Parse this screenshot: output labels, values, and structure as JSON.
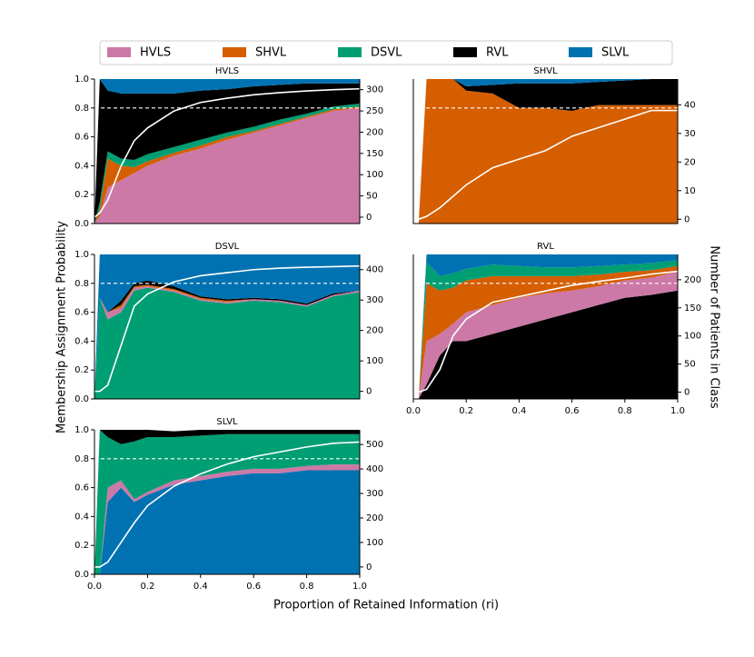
{
  "labels": {
    "ylabel": "Membership Assignment Probability",
    "y2label": "Number of Patients in Class",
    "xlabel": "Proportion of Retained Information (ri)"
  },
  "chart_data": [
    {
      "type": "area",
      "title": "HVLS",
      "x": [
        0,
        0.02,
        0.05,
        0.1,
        0.15,
        0.2,
        0.3,
        0.4,
        0.5,
        0.6,
        0.7,
        0.8,
        0.9,
        1.0
      ],
      "series": [
        {
          "name": "HVLS",
          "color": "#cc79a7",
          "values": [
            0,
            0.05,
            0.25,
            0.3,
            0.35,
            0.4,
            0.47,
            0.52,
            0.58,
            0.63,
            0.68,
            0.73,
            0.78,
            0.8
          ]
        },
        {
          "name": "SHVL",
          "color": "#d55e00",
          "values": [
            0,
            0.05,
            0.2,
            0.1,
            0.04,
            0.03,
            0.02,
            0.02,
            0.02,
            0.01,
            0.01,
            0.01,
            0.01,
            0.01
          ]
        },
        {
          "name": "DSVL",
          "color": "#009e73",
          "values": [
            0,
            0.05,
            0.05,
            0.05,
            0.05,
            0.05,
            0.04,
            0.04,
            0.03,
            0.03,
            0.03,
            0.02,
            0.02,
            0.02
          ]
        },
        {
          "name": "RVL",
          "color": "#000000",
          "values": [
            0,
            0.85,
            0.42,
            0.45,
            0.46,
            0.42,
            0.37,
            0.34,
            0.3,
            0.28,
            0.24,
            0.21,
            0.16,
            0.14
          ]
        },
        {
          "name": "SLVL",
          "color": "#0072b2",
          "values": [
            0,
            0,
            0.08,
            0.1,
            0.1,
            0.1,
            0.1,
            0.08,
            0.07,
            0.05,
            0.04,
            0.03,
            0.03,
            0.03
          ]
        }
      ],
      "line": {
        "color": "#ffffff",
        "axis": "y2",
        "values": [
          0,
          10,
          40,
          120,
          180,
          210,
          250,
          270,
          280,
          288,
          293,
          297,
          300,
          302
        ]
      },
      "threshold": 0.8,
      "xlim": [
        0,
        1
      ],
      "ylim": [
        0,
        1
      ],
      "yticks": [
        {
          "value": 0,
          "label": "0.0"
        },
        {
          "value": 0.2,
          "label": "0.2"
        },
        {
          "value": 0.4,
          "label": "0.4"
        },
        {
          "value": 0.6,
          "label": "0.6"
        },
        {
          "value": 0.8,
          "label": "0.8"
        },
        {
          "value": 1,
          "label": "1.0"
        }
      ],
      "y2lim": [
        -15,
        325
      ],
      "y2ticks": [
        0,
        50,
        100,
        150,
        200,
        250,
        300
      ]
    },
    {
      "type": "area",
      "title": "SHVL",
      "x": [
        0,
        0.02,
        0.05,
        0.1,
        0.15,
        0.2,
        0.3,
        0.4,
        0.5,
        0.6,
        0.7,
        0.8,
        0.9,
        1.0
      ],
      "series": [
        {
          "name": "SHVL",
          "color": "#d55e00",
          "values": [
            0,
            0,
            1,
            1,
            1,
            0.92,
            0.9,
            0.8,
            0.8,
            0.78,
            0.82,
            0.82,
            0.82,
            0.82
          ]
        },
        {
          "name": "HVLS",
          "color": "#cc79a7",
          "values": [
            0,
            0,
            0,
            0,
            0,
            0,
            0,
            0,
            0,
            0,
            0,
            0,
            0,
            0
          ]
        },
        {
          "name": "DSVL",
          "color": "#009e73",
          "values": [
            0,
            0,
            0,
            0,
            0,
            0,
            0,
            0,
            0,
            0,
            0,
            0,
            0,
            0
          ]
        },
        {
          "name": "RVL",
          "color": "#000000",
          "values": [
            0,
            0,
            0,
            0,
            0,
            0.03,
            0.06,
            0.17,
            0.17,
            0.19,
            0.16,
            0.17,
            0.18,
            0.18
          ]
        },
        {
          "name": "SLVL",
          "color": "#0072b2",
          "values": [
            0,
            0,
            0,
            0,
            0,
            0.05,
            0.04,
            0.03,
            0.03,
            0.03,
            0.02,
            0.01,
            0,
            0
          ]
        }
      ],
      "line": {
        "color": "#ffffff",
        "axis": "y2",
        "values": [
          0,
          0,
          1,
          4,
          8,
          12,
          18,
          21,
          24,
          29,
          32,
          35,
          38,
          38
        ]
      },
      "threshold": 0.8,
      "xlim": [
        0,
        1
      ],
      "ylim": [
        0,
        1
      ],
      "y2lim": [
        -1.5,
        49
      ],
      "y2ticks": [
        0,
        10,
        20,
        30,
        40
      ]
    },
    {
      "type": "area",
      "title": "DSVL",
      "x": [
        0,
        0.02,
        0.05,
        0.1,
        0.15,
        0.2,
        0.3,
        0.4,
        0.5,
        0.6,
        0.7,
        0.8,
        0.9,
        1.0
      ],
      "series": [
        {
          "name": "DSVL",
          "color": "#009e73",
          "values": [
            0,
            0.7,
            0.55,
            0.6,
            0.75,
            0.77,
            0.74,
            0.68,
            0.66,
            0.68,
            0.67,
            0.64,
            0.71,
            0.74
          ]
        },
        {
          "name": "HVLS",
          "color": "#cc79a7",
          "values": [
            0,
            0,
            0.05,
            0.03,
            0.02,
            0.01,
            0.01,
            0.01,
            0.01,
            0.01,
            0.01,
            0.01,
            0.01,
            0.01
          ]
        },
        {
          "name": "SHVL",
          "color": "#d55e00",
          "values": [
            0,
            0,
            0,
            0.02,
            0.01,
            0.01,
            0.01,
            0.01,
            0.01,
            0,
            0,
            0,
            0,
            0
          ]
        },
        {
          "name": "RVL",
          "color": "#000000",
          "values": [
            0,
            0,
            0,
            0.03,
            0.02,
            0.03,
            0.02,
            0.01,
            0.01,
            0.01,
            0.01,
            0.01,
            0.01,
            0
          ]
        },
        {
          "name": "SLVL",
          "color": "#0072b2",
          "values": [
            0,
            0.3,
            0.4,
            0.32,
            0.2,
            0.18,
            0.22,
            0.29,
            0.31,
            0.3,
            0.31,
            0.34,
            0.27,
            0.25
          ]
        }
      ],
      "line": {
        "color": "#ffffff",
        "axis": "y2",
        "values": [
          0,
          0,
          20,
          150,
          280,
          320,
          360,
          380,
          390,
          400,
          405,
          408,
          410,
          412
        ]
      },
      "threshold": 0.8,
      "xlim": [
        0,
        1
      ],
      "ylim": [
        0,
        1
      ],
      "yticks": [
        {
          "value": 0,
          "label": "0.0"
        },
        {
          "value": 0.2,
          "label": "0.2"
        },
        {
          "value": 0.4,
          "label": "0.4"
        },
        {
          "value": 0.6,
          "label": "0.6"
        },
        {
          "value": 0.8,
          "label": "0.8"
        },
        {
          "value": 1,
          "label": "1.0"
        }
      ],
      "y2lim": [
        -25,
        450
      ],
      "y2ticks": [
        0,
        100,
        200,
        300,
        400
      ]
    },
    {
      "type": "area",
      "title": "RVL",
      "x": [
        0,
        0.02,
        0.05,
        0.1,
        0.15,
        0.2,
        0.3,
        0.4,
        0.5,
        0.6,
        0.7,
        0.8,
        0.9,
        1.0
      ],
      "series": [
        {
          "name": "RVL",
          "color": "#000000",
          "values": [
            0,
            0,
            0.1,
            0.3,
            0.4,
            0.4,
            0.45,
            0.5,
            0.55,
            0.6,
            0.65,
            0.7,
            0.72,
            0.75
          ]
        },
        {
          "name": "HVLS",
          "color": "#cc79a7",
          "values": [
            0,
            0,
            0.3,
            0.15,
            0.12,
            0.2,
            0.2,
            0.2,
            0.18,
            0.15,
            0.13,
            0.12,
            0.12,
            0.13
          ]
        },
        {
          "name": "SHVL",
          "color": "#d55e00",
          "values": [
            0,
            0,
            0.4,
            0.3,
            0.25,
            0.22,
            0.2,
            0.15,
            0.12,
            0.1,
            0.08,
            0.06,
            0.05,
            0.04
          ]
        },
        {
          "name": "DSVL",
          "color": "#009e73",
          "values": [
            0,
            0,
            0.15,
            0.1,
            0.1,
            0.08,
            0.08,
            0.07,
            0.06,
            0.06,
            0.06,
            0.05,
            0.05,
            0.04
          ]
        },
        {
          "name": "SLVL",
          "color": "#0072b2",
          "values": [
            0,
            0,
            0.05,
            0.15,
            0.13,
            0.1,
            0.07,
            0.08,
            0.09,
            0.09,
            0.08,
            0.07,
            0.06,
            0.04
          ]
        }
      ],
      "line": {
        "color": "#ffffff",
        "axis": "y2",
        "values": [
          0,
          0,
          5,
          40,
          100,
          130,
          160,
          170,
          180,
          190,
          197,
          203,
          210,
          215
        ]
      },
      "threshold": 0.8,
      "xlim": [
        0,
        1
      ],
      "ylim": [
        0,
        1
      ],
      "xticks": [
        {
          "value": 0,
          "label": "0.0"
        },
        {
          "value": 0.2,
          "label": "0.2"
        },
        {
          "value": 0.4,
          "label": "0.4"
        },
        {
          "value": 0.6,
          "label": "0.6"
        },
        {
          "value": 0.8,
          "label": "0.8"
        },
        {
          "value": 1,
          "label": "1.0"
        }
      ],
      "y2lim": [
        -12,
        245
      ],
      "y2ticks": [
        0,
        50,
        100,
        150,
        200
      ]
    },
    {
      "type": "area",
      "title": "SLVL",
      "x": [
        0,
        0.02,
        0.05,
        0.1,
        0.15,
        0.2,
        0.3,
        0.4,
        0.5,
        0.6,
        0.7,
        0.8,
        0.9,
        1.0
      ],
      "series": [
        {
          "name": "SLVL",
          "color": "#0072b2",
          "values": [
            0,
            0,
            0.5,
            0.6,
            0.5,
            0.55,
            0.62,
            0.65,
            0.68,
            0.7,
            0.7,
            0.72,
            0.72,
            0.72
          ]
        },
        {
          "name": "HVLS",
          "color": "#cc79a7",
          "values": [
            0,
            0,
            0.1,
            0.05,
            0.02,
            0.02,
            0.03,
            0.03,
            0.03,
            0.03,
            0.03,
            0.03,
            0.04,
            0.04
          ]
        },
        {
          "name": "SHVL",
          "color": "#d55e00",
          "values": [
            0,
            0,
            0,
            0,
            0,
            0,
            0,
            0,
            0,
            0,
            0,
            0,
            0,
            0
          ]
        },
        {
          "name": "DSVL",
          "color": "#009e73",
          "values": [
            0,
            1,
            0.35,
            0.25,
            0.4,
            0.38,
            0.3,
            0.28,
            0.26,
            0.24,
            0.24,
            0.22,
            0.21,
            0.21
          ]
        },
        {
          "name": "RVL",
          "color": "#000000",
          "values": [
            0,
            0,
            0.05,
            0.1,
            0.08,
            0.05,
            0.04,
            0.04,
            0.03,
            0.03,
            0.03,
            0.03,
            0.03,
            0.03
          ]
        }
      ],
      "line": {
        "color": "#ffffff",
        "axis": "y2",
        "values": [
          0,
          0,
          20,
          100,
          180,
          250,
          330,
          380,
          420,
          450,
          470,
          490,
          505,
          510
        ]
      },
      "threshold": 0.8,
      "xlim": [
        0,
        1
      ],
      "ylim": [
        0,
        1
      ],
      "yticks": [
        {
          "value": 0,
          "label": "0.0"
        },
        {
          "value": 0.2,
          "label": "0.2"
        },
        {
          "value": 0.4,
          "label": "0.4"
        },
        {
          "value": 0.6,
          "label": "0.6"
        },
        {
          "value": 0.8,
          "label": "0.8"
        },
        {
          "value": 1,
          "label": "1.0"
        }
      ],
      "xticks": [
        {
          "value": 0,
          "label": "0.0"
        },
        {
          "value": 0.2,
          "label": "0.2"
        },
        {
          "value": 0.4,
          "label": "0.4"
        },
        {
          "value": 0.6,
          "label": "0.6"
        },
        {
          "value": 0.8,
          "label": "0.8"
        },
        {
          "value": 1,
          "label": "1.0"
        }
      ],
      "y2lim": [
        -30,
        560
      ],
      "y2ticks": [
        0,
        100,
        200,
        300,
        400,
        500
      ]
    }
  ]
}
